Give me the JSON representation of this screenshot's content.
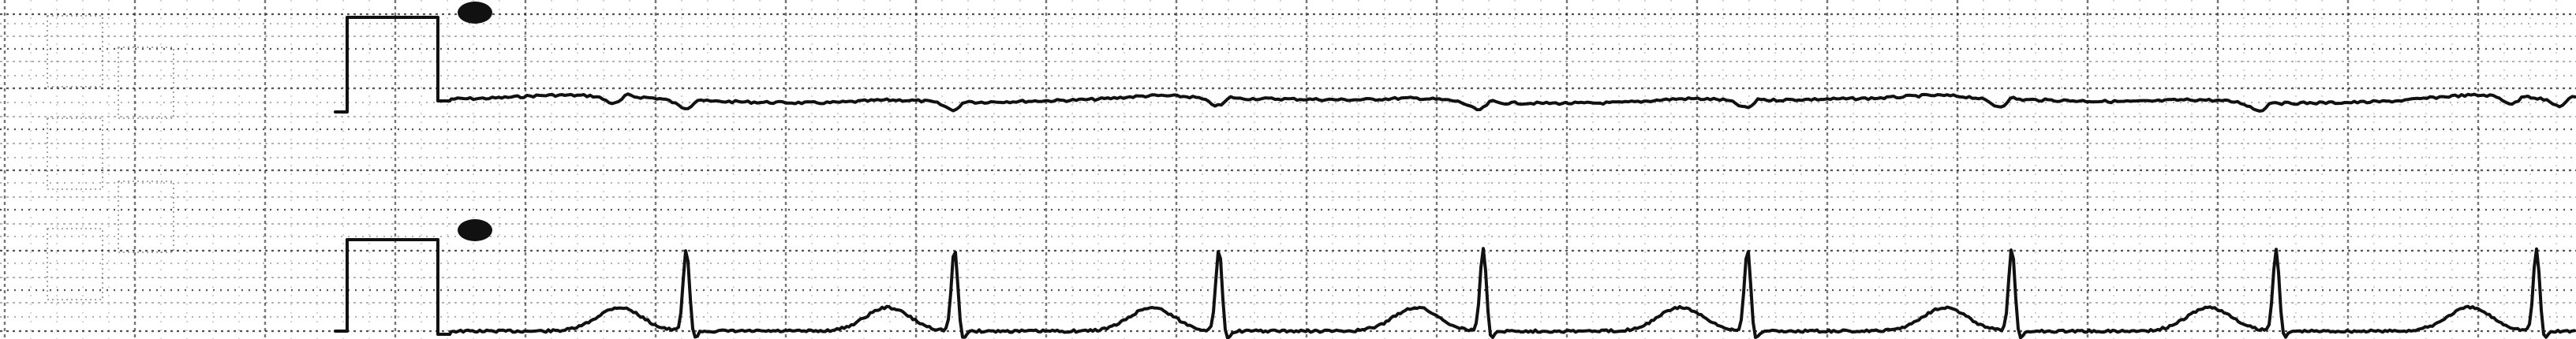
{
  "image": {
    "kind": "ecg-strip-scan",
    "background_color": "#ffffff",
    "grid_color": "#1a1a1a",
    "trace_color": "#111111",
    "grid_style": "dotted",
    "leads": [
      {
        "name": "",
        "calibration_pulse": true,
        "shape": "low-amplitude trace with small negative dips",
        "beat_count": 10
      },
      {
        "name": "",
        "calibration_pulse": true,
        "shape": "sharp upright R waves with rounded T waves",
        "beat_count": 8
      }
    ]
  }
}
